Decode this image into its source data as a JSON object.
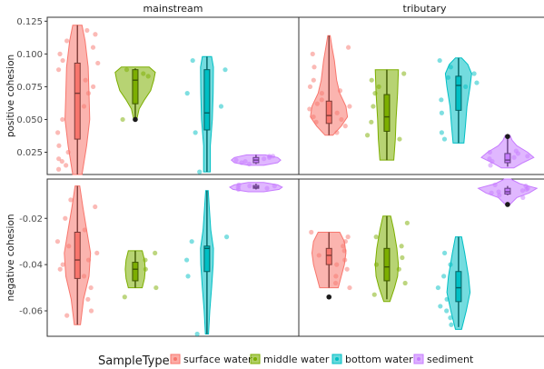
{
  "chart_data": {
    "type": "violin",
    "facets": {
      "columns": [
        "mainstream",
        "tributary"
      ],
      "rows": [
        "positive cohesion",
        "negative cohesion"
      ]
    },
    "categories": [
      "surface water",
      "middle water",
      "bottom water",
      "sediment"
    ],
    "colors": {
      "surface water": "#f8766d",
      "middle water": "#7cae00",
      "bottom water": "#00bfc4",
      "sediment": "#c77cff"
    },
    "legend": {
      "title": "SampleType",
      "position": "bottom"
    },
    "axes": {
      "positive": {
        "ylim": [
          0.008,
          0.128
        ],
        "ticks": [
          0.025,
          0.05,
          0.075,
          0.1,
          0.125
        ],
        "tick_labels": [
          "0.025",
          "0.050",
          "0.075",
          "0.100",
          "0.125"
        ]
      },
      "negative": {
        "ylim": [
          -0.071,
          -0.003
        ],
        "ticks": [
          -0.06,
          -0.04,
          -0.02
        ],
        "tick_labels": [
          "-0.06",
          "-0.04",
          "-0.02"
        ]
      }
    },
    "panels": [
      {
        "column": "mainstream",
        "row": "positive",
        "groups": [
          {
            "category": "surface water",
            "ymin": 0.008,
            "ymax": 0.122,
            "q1": 0.035,
            "median": 0.07,
            "q3": 0.093,
            "outliers": [],
            "violin": [
              [
                0.008,
                0.3
              ],
              [
                0.03,
                0.6
              ],
              [
                0.05,
                0.8
              ],
              [
                0.07,
                0.75
              ],
              [
                0.09,
                0.7
              ],
              [
                0.11,
                0.5
              ],
              [
                0.122,
                0.3
              ]
            ],
            "points": [
              0.012,
              0.015,
              0.018,
              0.02,
              0.025,
              0.03,
              0.04,
              0.05,
              0.06,
              0.07,
              0.075,
              0.08,
              0.088,
              0.093,
              0.095,
              0.1,
              0.105,
              0.11,
              0.115,
              0.118
            ]
          },
          {
            "category": "middle water",
            "ymin": 0.05,
            "ymax": 0.089,
            "q1": 0.062,
            "median": 0.08,
            "q3": 0.088,
            "outliers": [
              0.05
            ],
            "violin": [
              [
                0.05,
                0.1
              ],
              [
                0.058,
                0.25
              ],
              [
                0.065,
                0.6
              ],
              [
                0.072,
                1.0
              ],
              [
                0.08,
                1.2
              ],
              [
                0.086,
                1.3
              ],
              [
                0.09,
                0.9
              ]
            ],
            "points": [
              0.05,
              0.083,
              0.085,
              0.088
            ]
          },
          {
            "category": "bottom water",
            "ymin": 0.01,
            "ymax": 0.098,
            "q1": 0.042,
            "median": 0.055,
            "q3": 0.088,
            "outliers": [],
            "violin": [
              [
                0.01,
                0.22
              ],
              [
                0.03,
                0.22
              ],
              [
                0.05,
                0.35
              ],
              [
                0.07,
                0.4
              ],
              [
                0.09,
                0.42
              ],
              [
                0.098,
                0.3
              ]
            ],
            "points": [
              0.01,
              0.04,
              0.06,
              0.07,
              0.088,
              0.095
            ]
          },
          {
            "category": "sediment",
            "ymin": 0.016,
            "ymax": 0.023,
            "q1": 0.017,
            "median": 0.019,
            "q3": 0.021,
            "outliers": [],
            "violin": [
              [
                0.015,
                0.5
              ],
              [
                0.017,
                1.4
              ],
              [
                0.019,
                1.6
              ],
              [
                0.021,
                1.4
              ],
              [
                0.023,
                0.6
              ]
            ],
            "points": [
              0.016,
              0.017,
              0.018,
              0.019,
              0.02,
              0.021,
              0.022,
              0.022
            ]
          }
        ]
      },
      {
        "column": "tributary",
        "row": "positive",
        "groups": [
          {
            "category": "surface water",
            "ymin": 0.038,
            "ymax": 0.114,
            "q1": 0.047,
            "median": 0.053,
            "q3": 0.064,
            "outliers": [],
            "violin": [
              [
                0.038,
                0.25
              ],
              [
                0.045,
                0.8
              ],
              [
                0.052,
                1.2
              ],
              [
                0.06,
                1.1
              ],
              [
                0.07,
                0.7
              ],
              [
                0.08,
                0.5
              ],
              [
                0.095,
                0.35
              ],
              [
                0.105,
                0.2
              ],
              [
                0.114,
                0.08
              ]
            ],
            "points": [
              0.04,
              0.045,
              0.048,
              0.05,
              0.052,
              0.055,
              0.058,
              0.06,
              0.062,
              0.065,
              0.07,
              0.072,
              0.075,
              0.08,
              0.09,
              0.1,
              0.105
            ]
          },
          {
            "category": "middle water",
            "ymin": 0.019,
            "ymax": 0.088,
            "q1": 0.041,
            "median": 0.052,
            "q3": 0.069,
            "outliers": [],
            "violin": [
              [
                0.019,
                0.45
              ],
              [
                0.035,
                0.55
              ],
              [
                0.05,
                0.6
              ],
              [
                0.07,
                0.7
              ],
              [
                0.088,
                0.75
              ]
            ],
            "points": [
              0.035,
              0.038,
              0.048,
              0.06,
              0.07,
              0.075,
              0.08,
              0.085
            ]
          },
          {
            "category": "bottom water",
            "ymin": 0.032,
            "ymax": 0.097,
            "q1": 0.057,
            "median": 0.076,
            "q3": 0.083,
            "outliers": [],
            "violin": [
              [
                0.032,
                0.35
              ],
              [
                0.045,
                0.45
              ],
              [
                0.06,
                0.55
              ],
              [
                0.075,
                0.75
              ],
              [
                0.085,
                0.85
              ],
              [
                0.092,
                0.6
              ],
              [
                0.097,
                0.2
              ]
            ],
            "points": [
              0.035,
              0.04,
              0.055,
              0.065,
              0.075,
              0.078,
              0.082,
              0.085,
              0.09,
              0.095
            ]
          },
          {
            "category": "sediment",
            "ymin": 0.014,
            "ymax": 0.038,
            "q1": 0.017,
            "median": 0.019,
            "q3": 0.024,
            "outliers": [
              0.037
            ],
            "violin": [
              [
                0.013,
                0.4
              ],
              [
                0.017,
                1.0
              ],
              [
                0.021,
                1.7
              ],
              [
                0.025,
                1.3
              ],
              [
                0.03,
                0.6
              ],
              [
                0.034,
                0.3
              ],
              [
                0.038,
                0.15
              ]
            ],
            "points": [
              0.015,
              0.018,
              0.02,
              0.021,
              0.022,
              0.024,
              0.025,
              0.026
            ]
          }
        ]
      },
      {
        "column": "mainstream",
        "row": "negative",
        "groups": [
          {
            "category": "surface water",
            "ymin": -0.066,
            "ymax": -0.006,
            "q1": -0.046,
            "median": -0.038,
            "q3": -0.026,
            "outliers": [],
            "violin": [
              [
                -0.066,
                0.2
              ],
              [
                -0.055,
                0.4
              ],
              [
                -0.045,
                0.75
              ],
              [
                -0.035,
                0.85
              ],
              [
                -0.025,
                0.6
              ],
              [
                -0.015,
                0.35
              ],
              [
                -0.006,
                0.15
              ]
            ],
            "points": [
              -0.062,
              -0.06,
              -0.055,
              -0.05,
              -0.045,
              -0.042,
              -0.04,
              -0.038,
              -0.035,
              -0.032,
              -0.03,
              -0.025,
              -0.02,
              -0.015,
              -0.012
            ]
          },
          {
            "category": "middle water",
            "ymin": -0.05,
            "ymax": -0.034,
            "q1": -0.047,
            "median": -0.042,
            "q3": -0.039,
            "outliers": [],
            "violin": [
              [
                -0.05,
                0.45
              ],
              [
                -0.046,
                0.6
              ],
              [
                -0.042,
                0.65
              ],
              [
                -0.038,
                0.6
              ],
              [
                -0.034,
                0.45
              ]
            ],
            "points": [
              -0.05,
              -0.042,
              -0.038,
              -0.035,
              -0.054
            ]
          },
          {
            "category": "bottom water",
            "ymin": -0.07,
            "ymax": -0.008,
            "q1": -0.043,
            "median": -0.033,
            "q3": -0.032,
            "outliers": [],
            "violin": [
              [
                -0.07,
                0.1
              ],
              [
                -0.06,
                0.18
              ],
              [
                -0.05,
                0.3
              ],
              [
                -0.04,
                0.4
              ],
              [
                -0.033,
                0.42
              ],
              [
                -0.025,
                0.25
              ],
              [
                -0.015,
                0.15
              ],
              [
                -0.008,
                0.08
              ]
            ],
            "points": [
              -0.07,
              -0.045,
              -0.038,
              -0.03,
              -0.028
            ]
          },
          {
            "category": "sediment",
            "ymin": -0.0075,
            "ymax": -0.005,
            "q1": -0.007,
            "median": -0.0065,
            "q3": -0.0058,
            "outliers": [],
            "violin": [
              [
                -0.0085,
                0.5
              ],
              [
                -0.0075,
                1.5
              ],
              [
                -0.0065,
                1.7
              ],
              [
                -0.0055,
                1.4
              ],
              [
                -0.0045,
                0.5
              ]
            ],
            "points": [
              -0.0075,
              -0.007,
              -0.0065,
              -0.006,
              -0.0055,
              -0.006
            ]
          }
        ]
      },
      {
        "column": "tributary",
        "row": "negative",
        "groups": [
          {
            "category": "surface water",
            "ymin": -0.05,
            "ymax": -0.026,
            "q1": -0.04,
            "median": -0.036,
            "q3": -0.033,
            "outliers": [
              -0.054
            ],
            "violin": [
              [
                -0.05,
                0.6
              ],
              [
                -0.045,
                0.8
              ],
              [
                -0.04,
                1.0
              ],
              [
                -0.035,
                1.1
              ],
              [
                -0.03,
                1.0
              ],
              [
                -0.026,
                0.7
              ]
            ],
            "points": [
              -0.05,
              -0.048,
              -0.045,
              -0.042,
              -0.04,
              -0.038,
              -0.036,
              -0.034,
              -0.032,
              -0.03,
              -0.028,
              -0.026
            ]
          },
          {
            "category": "middle water",
            "ymin": -0.055,
            "ymax": -0.019,
            "q1": -0.047,
            "median": -0.041,
            "q3": -0.033,
            "outliers": [],
            "violin": [
              [
                -0.056,
                0.2
              ],
              [
                -0.05,
                0.5
              ],
              [
                -0.045,
                0.7
              ],
              [
                -0.04,
                0.75
              ],
              [
                -0.033,
                0.65
              ],
              [
                -0.025,
                0.45
              ],
              [
                -0.019,
                0.25
              ]
            ],
            "points": [
              -0.053,
              -0.048,
              -0.042,
              -0.04,
              -0.037,
              -0.032,
              -0.028,
              -0.022
            ]
          },
          {
            "category": "bottom water",
            "ymin": -0.067,
            "ymax": -0.028,
            "q1": -0.056,
            "median": -0.05,
            "q3": -0.043,
            "outliers": [],
            "violin": [
              [
                -0.068,
                0.2
              ],
              [
                -0.06,
                0.5
              ],
              [
                -0.052,
                0.75
              ],
              [
                -0.045,
                0.65
              ],
              [
                -0.035,
                0.4
              ],
              [
                -0.028,
                0.2
              ]
            ],
            "points": [
              -0.066,
              -0.063,
              -0.06,
              -0.058,
              -0.055,
              -0.05,
              -0.045,
              -0.04,
              -0.035
            ]
          },
          {
            "category": "sediment",
            "ymin": -0.01,
            "ymax": -0.006,
            "q1": -0.0095,
            "median": -0.0085,
            "q3": -0.007,
            "outliers": [
              -0.014
            ],
            "violin": [
              [
                -0.014,
                0.15
              ],
              [
                -0.011,
                0.6
              ],
              [
                -0.009,
                1.4
              ],
              [
                -0.007,
                1.9
              ],
              [
                -0.005,
                0.8
              ],
              [
                -0.003,
                0.2
              ]
            ],
            "points": [
              -0.011,
              -0.01,
              -0.009,
              -0.0085,
              -0.008,
              -0.0075,
              -0.007,
              -0.006,
              -0.0055
            ]
          }
        ]
      }
    ]
  }
}
